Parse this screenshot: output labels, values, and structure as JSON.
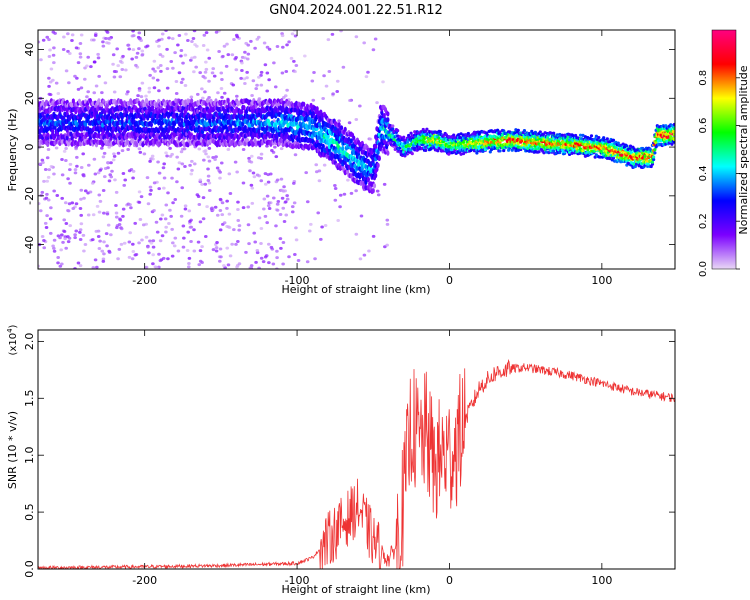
{
  "figure_title": "GN04.2024.001.22.51.R12",
  "chart_data": [
    {
      "type": "heatmap",
      "xlabel": "Height of straight line (km)",
      "ylabel": "Frequency (Hz)",
      "xlim": [
        -270,
        148
      ],
      "ylim": [
        -50,
        48
      ],
      "xticks": [
        "-200",
        "-100",
        "0",
        "100"
      ],
      "xtick_values": [
        -200,
        -100,
        0,
        100
      ],
      "yticks": [
        "-40",
        "-20",
        "0",
        "20",
        "40"
      ],
      "ytick_values": [
        -40,
        -20,
        0,
        20,
        40
      ],
      "colorbar": {
        "label": "Normalized spectral amplitude",
        "range": [
          0,
          1
        ],
        "ticks": [
          "0.0",
          "0.2",
          "0.4",
          "0.6",
          "0.8"
        ],
        "tick_values": [
          0.0,
          0.2,
          0.4,
          0.6,
          0.8
        ],
        "colors": [
          "#e9d8f5",
          "#7b00ff",
          "#0000ff",
          "#00ffff",
          "#00ff00",
          "#ffff00",
          "#ff0000",
          "#ff0080"
        ]
      },
      "ridge": {
        "height_km": [
          -270,
          -240,
          -200,
          -160,
          -130,
          -110,
          -90,
          -80,
          -70,
          -60,
          -50,
          -45,
          -40,
          -30,
          -20,
          -10,
          0,
          20,
          40,
          60,
          80,
          100,
          120,
          133,
          136,
          148
        ],
        "frequency_hz": [
          10,
          10,
          10,
          10,
          10,
          10,
          8,
          4,
          -1,
          -6,
          -10,
          8,
          6,
          0,
          3,
          3,
          1,
          2,
          3,
          2,
          1,
          0,
          -4,
          -4,
          5,
          5
        ],
        "amplitude": [
          0.3,
          0.3,
          0.3,
          0.3,
          0.35,
          0.4,
          0.4,
          0.45,
          0.45,
          0.4,
          0.35,
          0.4,
          0.45,
          0.5,
          0.6,
          0.75,
          0.6,
          0.75,
          0.85,
          0.8,
          0.8,
          0.85,
          0.85,
          0.85,
          0.9,
          0.9
        ]
      }
    },
    {
      "type": "line",
      "xlabel": "Height of straight line (km)",
      "ylabel": "SNR (10 * v/v)",
      "yscale_note": "(x10",
      "yscale_exp": "4",
      "yscale_close": ")",
      "xlim": [
        -270,
        148
      ],
      "ylim": [
        0,
        2.1
      ],
      "xticks": [
        "-200",
        "-100",
        "0",
        "100"
      ],
      "xtick_values": [
        -200,
        -100,
        0,
        100
      ],
      "yticks": [
        "0.0",
        "0.5",
        "1.0",
        "1.5",
        "2.0"
      ],
      "ytick_values": [
        0.0,
        0.5,
        1.0,
        1.5,
        2.0
      ],
      "color": "#ee3333",
      "series": [
        {
          "x": [
            -270,
            -200,
            -150,
            -100,
            -90,
            -80,
            -70,
            -60,
            -55,
            -50,
            -45,
            -40,
            -35,
            -30,
            -25,
            -20,
            -15,
            -10,
            -5,
            0,
            5,
            10,
            20,
            30,
            40,
            50,
            60,
            80,
            100,
            120,
            148
          ],
          "y": [
            0.01,
            0.02,
            0.03,
            0.05,
            0.1,
            0.25,
            0.4,
            0.55,
            0.4,
            0.25,
            0.15,
            0.08,
            0.2,
            0.6,
            1.3,
            1.1,
            1.2,
            0.9,
            1.0,
            1.0,
            1.1,
            1.3,
            1.6,
            1.72,
            1.76,
            1.77,
            1.75,
            1.7,
            1.63,
            1.56,
            1.5
          ]
        }
      ]
    }
  ]
}
